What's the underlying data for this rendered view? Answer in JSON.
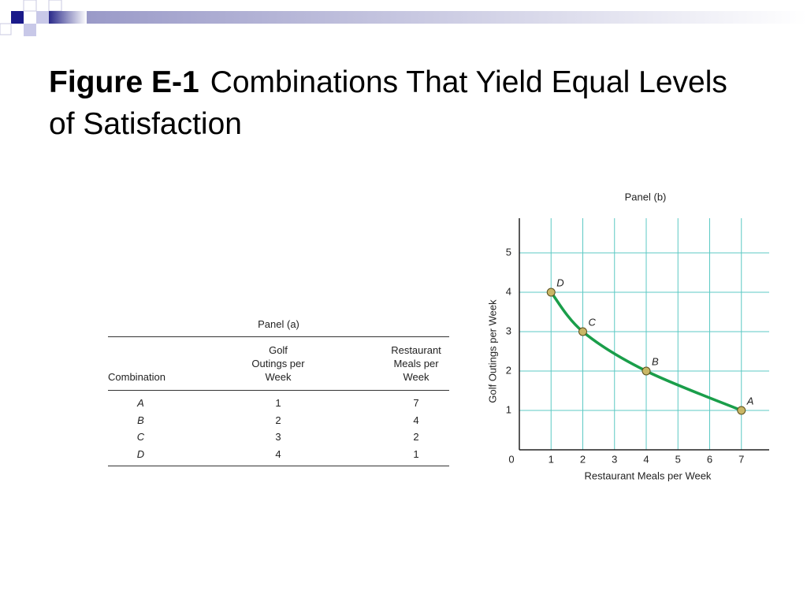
{
  "title": {
    "label": "Figure E-1",
    "text": "Combinations That Yield Equal Levels of Satisfaction"
  },
  "table": {
    "title": "Panel (a)",
    "columns": [
      "Combination",
      "Golf Outings per Week",
      "Restaurant Meals per Week"
    ],
    "rows": [
      [
        "A",
        1,
        7
      ],
      [
        "B",
        2,
        4
      ],
      [
        "C",
        3,
        2
      ],
      [
        "D",
        4,
        1
      ]
    ]
  },
  "chart_data": {
    "type": "line",
    "title": "Panel (b)",
    "x_label": "Restaurant Meals per Week",
    "y_label": "Golf Outings per Week",
    "x": [
      7,
      4,
      2,
      1
    ],
    "values": [
      1,
      2,
      3,
      4
    ],
    "point_labels": [
      "A",
      "B",
      "C",
      "D"
    ],
    "color": "#1a9e4a",
    "marker_color": "#c9b766",
    "xlim": [
      0,
      8
    ],
    "ylim": [
      0,
      6
    ],
    "xticks": [
      0,
      1,
      2,
      3,
      4,
      5,
      6,
      7
    ],
    "yticks": [
      1,
      2,
      3,
      4,
      5
    ],
    "grid": true,
    "grid_color": "#5cc9c4"
  }
}
